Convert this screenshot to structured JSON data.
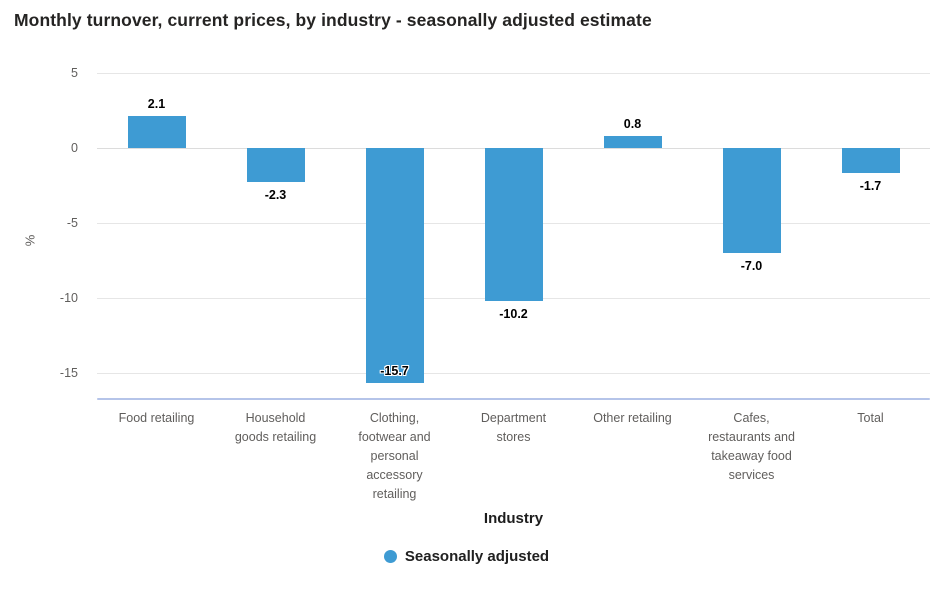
{
  "header": {
    "title": "Monthly turnover, current prices, by industry - seasonally adjusted estimate"
  },
  "chart_data": {
    "type": "bar",
    "title": "Monthly turnover, current prices, by industry - seasonally adjusted estimate",
    "xlabel": "Industry",
    "ylabel": "%",
    "categories": [
      "Food retailing",
      "Household goods retailing",
      "Clothing, footwear and personal accessory retailing",
      "Department stores",
      "Other retailing",
      "Cafes, restaurants and takeaway food services",
      "Total"
    ],
    "series": [
      {
        "name": "Seasonally adjusted",
        "color": "#3E9BD3",
        "values": [
          2.1,
          -2.3,
          -15.7,
          -10.2,
          0.8,
          -7.0,
          -1.7
        ]
      }
    ],
    "data_labels": [
      "2.1",
      "-2.3",
      "-15.7",
      "-10.2",
      "0.8",
      "-7.0",
      "-1.7"
    ],
    "yticks": [
      5,
      0,
      -5,
      -10,
      -15
    ],
    "ytick_labels": [
      "5",
      "0",
      "-5",
      "-10",
      "-15"
    ],
    "ylim": [
      6,
      -16.7
    ],
    "grid": "horizontal",
    "legend_position": "bottom"
  },
  "legend": {
    "items": [
      {
        "label": "Seasonally adjusted",
        "color": "#3E9BD3",
        "marker": "circle"
      }
    ]
  },
  "colors": {
    "bar": "#3E9BD3",
    "title_text": "#252423",
    "axis_text": "#605E5C",
    "gridline": "#E6E6E6",
    "zero_line": "#DCDCDC",
    "baseline": "#B5C4E9",
    "data_label_text": "#000000"
  }
}
